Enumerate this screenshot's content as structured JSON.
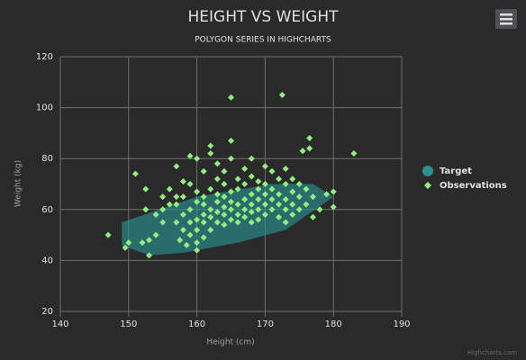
{
  "chart_data": {
    "type": "scatter",
    "title": "HEIGHT VS WEIGHT",
    "subtitle": "POLYGON SERIES IN HIGHCHARTS",
    "x_label": "Height (cm)",
    "y_label": "Weight (kg)",
    "credits": "Highcharts.com",
    "xlim": [
      140,
      190
    ],
    "xticks": [
      140,
      150,
      160,
      170,
      180,
      190
    ],
    "ylim": [
      20,
      120
    ],
    "yticks": [
      20,
      40,
      60,
      80,
      100,
      120
    ],
    "grid": true,
    "legend": "right",
    "series": [
      {
        "name": "Target",
        "type": "polygon",
        "color": "#2b908f",
        "x": [
          153,
          149,
          149,
          160,
          171,
          177,
          180,
          173,
          166,
          158
        ],
        "values": [
          42,
          46,
          55,
          65,
          70,
          70,
          65,
          52,
          47,
          43
        ]
      },
      {
        "name": "Observations",
        "type": "scatter",
        "color": "#90ee7e",
        "x": [
          147,
          149.5,
          150,
          151,
          152,
          152.5,
          152.5,
          153,
          153,
          154,
          154,
          155,
          155,
          155,
          156,
          156,
          157,
          157,
          157,
          157,
          157.5,
          158,
          158,
          158,
          158,
          158.5,
          159,
          159,
          159,
          159,
          159,
          160,
          160,
          160,
          160,
          160,
          160,
          160,
          161,
          161,
          161,
          161,
          161,
          161,
          162,
          162,
          162,
          162,
          162,
          162,
          163,
          163,
          163,
          163,
          163,
          163,
          164,
          164,
          164,
          164,
          164,
          164,
          165,
          165,
          165,
          165,
          165,
          165,
          165,
          166,
          166,
          166,
          166,
          166,
          167,
          167,
          167,
          167,
          167,
          168,
          168,
          168,
          168,
          168,
          168,
          169,
          169,
          169,
          169,
          169,
          170,
          170,
          170,
          170,
          170,
          171,
          171,
          171,
          171,
          172,
          172,
          172,
          172,
          172.5,
          173,
          173,
          173,
          173,
          173,
          174,
          174,
          174,
          174,
          175,
          175,
          175,
          175.5,
          176,
          176,
          176.5,
          176.5,
          177,
          177,
          178,
          179,
          180,
          180,
          183
        ],
        "values": [
          50,
          45,
          47,
          74,
          47,
          60,
          68,
          42,
          48,
          50,
          58,
          55,
          60,
          65,
          62,
          68,
          55,
          62,
          65,
          77,
          48,
          52,
          58,
          65,
          71,
          46,
          50,
          55,
          60,
          70,
          81,
          44,
          47,
          52,
          56,
          63,
          67,
          80,
          49,
          55,
          58,
          62,
          65,
          75,
          52,
          57,
          60,
          68,
          82,
          85,
          55,
          59,
          63,
          66,
          72,
          78,
          54,
          58,
          61,
          65,
          70,
          75,
          56,
          60,
          63,
          67,
          80,
          87,
          104,
          55,
          58,
          62,
          68,
          72,
          57,
          60,
          64,
          70,
          76,
          55,
          59,
          62,
          66,
          73,
          80,
          56,
          60,
          64,
          68,
          71,
          58,
          62,
          66,
          70,
          77,
          60,
          64,
          68,
          75,
          57,
          62,
          66,
          72,
          105,
          55,
          60,
          64,
          70,
          76,
          58,
          62,
          67,
          72,
          60,
          65,
          70,
          83,
          62,
          68,
          88,
          84,
          57,
          65,
          60,
          66,
          67,
          61,
          82
        ]
      }
    ]
  }
}
